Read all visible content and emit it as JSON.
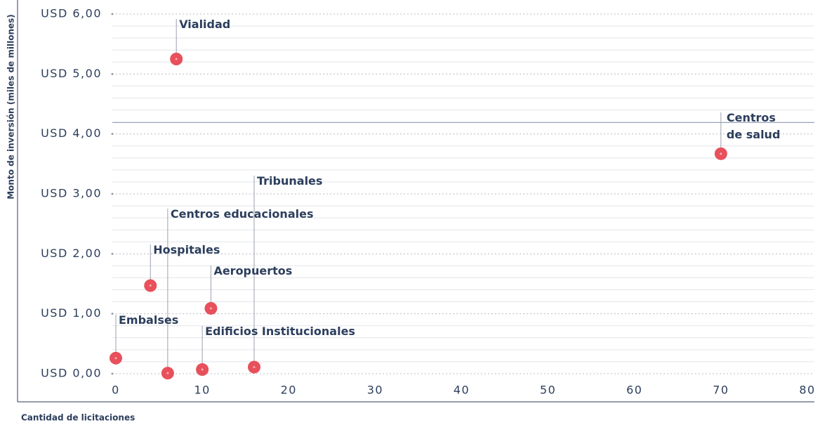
{
  "chart_data": {
    "type": "scatter",
    "xlabel": "Cantidad de licitaciones",
    "ylabel": "Monto de inversión (miles de millones)",
    "points": [
      {
        "label": "Vialidad",
        "x": 7,
        "y": 5.25
      },
      {
        "label": "Centros de salud",
        "x": 70,
        "y": 3.67
      },
      {
        "label": "Tribunales",
        "x": 16,
        "y": 0.11
      },
      {
        "label": "Centros educacionales",
        "x": 6,
        "y": 0.01
      },
      {
        "label": "Hospitales",
        "x": 4,
        "y": 1.47
      },
      {
        "label": "Aeropuertos",
        "x": 11,
        "y": 1.09
      },
      {
        "label": "Embalses",
        "x": 0,
        "y": 0.26
      },
      {
        "label": "Edificios Institucionales",
        "x": 10,
        "y": 0.07
      }
    ],
    "color": "#e8505b",
    "reference_line": 4.19,
    "xlim": [
      0,
      80
    ],
    "xticks": [
      0,
      10,
      20,
      30,
      40,
      50,
      60,
      70,
      80
    ],
    "ylim": [
      0,
      6
    ],
    "yticks": [
      {
        "value": 0,
        "label": "USD 0,00"
      },
      {
        "value": 1,
        "label": "USD 1,00"
      },
      {
        "value": 2,
        "label": "USD 2,00"
      },
      {
        "value": 3,
        "label": "USD 3,00"
      },
      {
        "value": 4,
        "label": "USD 4,00"
      },
      {
        "value": 5,
        "label": "USD 5,00"
      },
      {
        "value": 6,
        "label": "USD 6,00"
      }
    ],
    "grid": true
  }
}
